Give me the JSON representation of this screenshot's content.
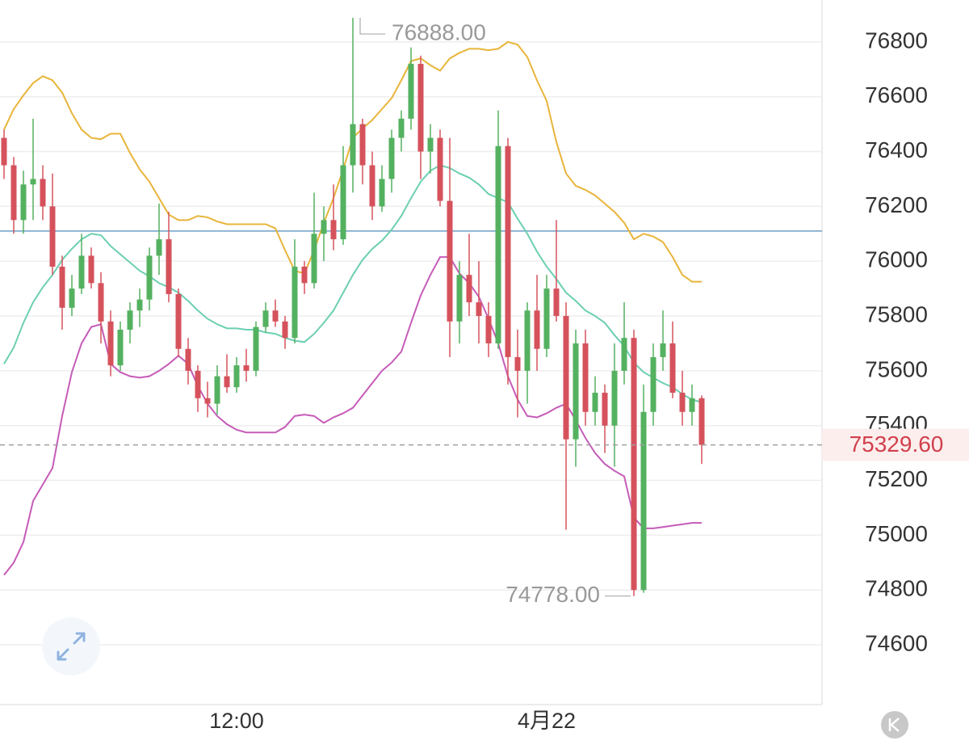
{
  "chart_data": {
    "type": "candlestick",
    "categories": [
      null,
      null,
      null,
      null,
      null,
      null,
      null,
      null,
      null,
      null,
      null,
      null,
      null,
      null,
      null,
      null,
      null,
      null,
      null,
      null,
      null,
      null,
      null,
      null,
      "12:00",
      null,
      null,
      null,
      null,
      null,
      null,
      null,
      null,
      null,
      null,
      null,
      null,
      null,
      null,
      null,
      null,
      null,
      null,
      null,
      null,
      null,
      null,
      null,
      null,
      null,
      null,
      null,
      null,
      null,
      null,
      null,
      "4月22",
      null,
      null,
      null,
      null,
      null,
      null,
      null,
      null,
      null,
      null,
      null,
      null,
      null,
      null,
      null,
      null
    ],
    "open": [
      76450,
      76350,
      76150,
      76280,
      76300,
      76200,
      75980,
      75830,
      75900,
      76020,
      75920,
      75780,
      75620,
      75750,
      75820,
      75860,
      76020,
      76080,
      75880,
      75680,
      75600,
      75500,
      75480,
      75580,
      75540,
      75620,
      75600,
      75760,
      75820,
      75780,
      75720,
      75980,
      75920,
      76100,
      76150,
      76080,
      76350,
      76500,
      76350,
      76200,
      76300,
      76450,
      76520,
      76720,
      76400,
      76450,
      76220,
      75780,
      75950,
      75850,
      75800,
      75700,
      76420,
      75650,
      75600,
      75820,
      75680,
      75900,
      75800,
      75350,
      75700,
      75450,
      75520,
      75400,
      75600,
      75720,
      74800,
      75450,
      75650,
      75700,
      75520,
      75450,
      75500
    ],
    "high": [
      76480,
      76380,
      76330,
      76520,
      76350,
      76320,
      76020,
      75950,
      76100,
      76050,
      75960,
      75820,
      75780,
      75850,
      75900,
      76050,
      76210,
      76180,
      75900,
      75720,
      75620,
      75560,
      75620,
      75660,
      75650,
      75680,
      75780,
      75850,
      75860,
      75800,
      76080,
      76000,
      76250,
      76200,
      76280,
      76420,
      76888,
      76520,
      76400,
      76350,
      76480,
      76550,
      76780,
      76750,
      76500,
      76480,
      76450,
      76000,
      76100,
      76000,
      75850,
      76550,
      76450,
      75750,
      75850,
      75950,
      75950,
      76150,
      75850,
      75750,
      75750,
      75580,
      75550,
      75700,
      75850,
      75750,
      75550,
      75700,
      75820,
      75780,
      75600,
      75550,
      75510
    ],
    "low": [
      76300,
      76100,
      76100,
      76150,
      76150,
      75950,
      75750,
      75800,
      75880,
      75900,
      75700,
      75580,
      75600,
      75700,
      75760,
      75820,
      75950,
      75850,
      75650,
      75550,
      75450,
      75430,
      75440,
      75520,
      75520,
      75560,
      75580,
      75740,
      75760,
      75680,
      75700,
      75880,
      75900,
      76000,
      76040,
      76060,
      76250,
      76280,
      76150,
      76180,
      76250,
      76400,
      76480,
      76300,
      76320,
      76200,
      75650,
      75700,
      75800,
      75700,
      75650,
      75680,
      75550,
      75430,
      75480,
      75600,
      75650,
      75780,
      75020,
      75250,
      75400,
      75400,
      75300,
      75250,
      75550,
      74778,
      74790,
      75400,
      75600,
      75500,
      75400,
      75400,
      75260
    ],
    "close": [
      76350,
      76150,
      76280,
      76300,
      76200,
      75980,
      75830,
      75900,
      76020,
      75920,
      75780,
      75620,
      75750,
      75820,
      75860,
      76020,
      76080,
      75880,
      75680,
      75600,
      75500,
      75480,
      75580,
      75540,
      75620,
      75600,
      75760,
      75820,
      75780,
      75720,
      75980,
      75920,
      76100,
      76150,
      76080,
      76350,
      76500,
      76350,
      76200,
      76300,
      76450,
      76520,
      76720,
      76400,
      76450,
      76220,
      75780,
      75950,
      75850,
      75800,
      75700,
      76420,
      75650,
      75600,
      75820,
      75680,
      75900,
      75800,
      75350,
      75700,
      75450,
      75520,
      75400,
      75600,
      75720,
      74800,
      75450,
      75650,
      75700,
      75520,
      75450,
      75500,
      75329.6
    ],
    "up_color": "#54b160",
    "down_color": "#d5525c",
    "bands": [
      {
        "color": "#e8b53a",
        "values": [
          76480,
          76555,
          76605,
          76650,
          76675,
          76660,
          76615,
          76540,
          76480,
          76450,
          76445,
          76465,
          76465,
          76395,
          76335,
          76290,
          76230,
          76170,
          76150,
          76150,
          76165,
          76160,
          76145,
          76135,
          76135,
          76135,
          76135,
          76135,
          76120,
          76040,
          75965,
          75955,
          76040,
          76140,
          76230,
          76335,
          76450,
          76485,
          76515,
          76555,
          76595,
          76660,
          76730,
          76740,
          76715,
          76695,
          76740,
          76760,
          76775,
          76775,
          76770,
          76775,
          76800,
          76790,
          76745,
          76660,
          76585,
          76435,
          76320,
          76275,
          76260,
          76240,
          76210,
          76180,
          76140,
          76080,
          76100,
          76090,
          76070,
          76015,
          75950,
          75925,
          75925
        ]
      },
      {
        "color": "#6ccfb2",
        "values": [
          75625,
          75685,
          75775,
          75850,
          75905,
          75950,
          76005,
          76045,
          76080,
          76100,
          76095,
          76055,
          76025,
          75995,
          75965,
          75945,
          75920,
          75905,
          75885,
          75855,
          75820,
          75790,
          75770,
          75755,
          75755,
          75750,
          75750,
          75740,
          75735,
          75720,
          75710,
          75705,
          75735,
          75775,
          75820,
          75885,
          75950,
          76005,
          76045,
          76075,
          76115,
          76165,
          76230,
          76290,
          76330,
          76350,
          76340,
          76320,
          76305,
          76280,
          76245,
          76230,
          76215,
          76155,
          76100,
          76035,
          75980,
          75935,
          75885,
          75855,
          75820,
          75800,
          75775,
          75730,
          75690,
          75630,
          75595,
          75575,
          75555,
          75540,
          75515,
          75495,
          75485
        ]
      },
      {
        "color": "#c65bb8",
        "values": [
          74855,
          74900,
          74975,
          75125,
          75185,
          75245,
          75435,
          75595,
          75700,
          75760,
          75770,
          75625,
          75595,
          75580,
          75575,
          75580,
          75600,
          75625,
          75655,
          75625,
          75545,
          75480,
          75435,
          75405,
          75385,
          75375,
          75375,
          75375,
          75375,
          75395,
          75435,
          75440,
          75435,
          75410,
          75430,
          75445,
          75465,
          75510,
          75555,
          75600,
          75630,
          75670,
          75775,
          75875,
          75950,
          76015,
          76015,
          75955,
          75920,
          75870,
          75790,
          75700,
          75580,
          75495,
          75435,
          75430,
          75445,
          75465,
          75480,
          75420,
          75355,
          75300,
          75260,
          75235,
          75215,
          75065,
          75025,
          75025,
          75030,
          75035,
          75040,
          75045,
          75045
        ]
      }
    ],
    "reference_line": {
      "value": 76110,
      "color": "#3d7fb0"
    },
    "current_price": {
      "value": 75329.6,
      "label": "75329.60"
    },
    "high_marker": {
      "value": 76888,
      "label": "76888.00"
    },
    "low_marker": {
      "value": 74778,
      "label": "74778.00"
    },
    "ylim": [
      74382,
      76953
    ],
    "yticks": [
      74600,
      74800,
      75000,
      75200,
      75400,
      75600,
      75800,
      76000,
      76200,
      76400,
      76600,
      76800
    ],
    "grid": true
  }
}
